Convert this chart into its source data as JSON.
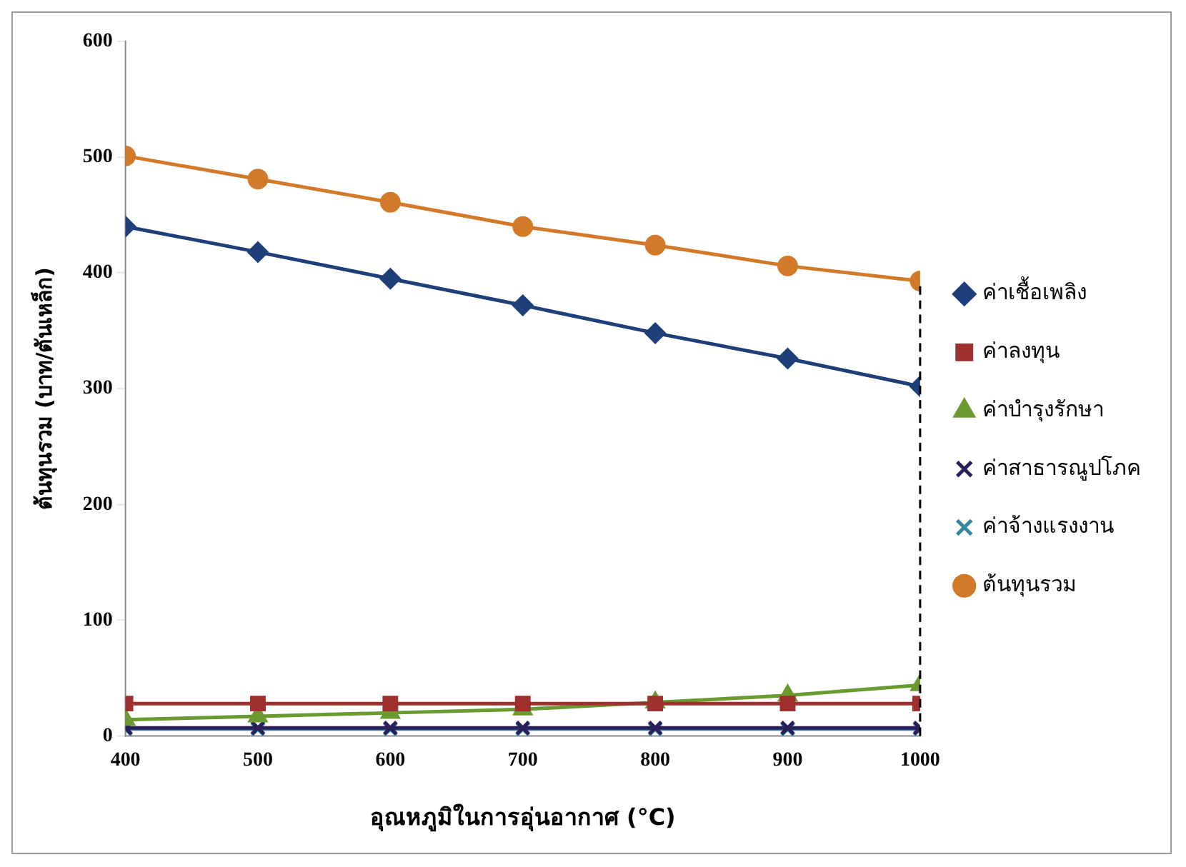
{
  "chart_data": {
    "type": "line",
    "xlabel": "อุณหภูมิในการอุ่นอากาศ (°C)",
    "ylabel": "ต้นทุนรวม (บาท/ตันเหล็ก)",
    "x": [
      400,
      500,
      600,
      700,
      800,
      900,
      1000
    ],
    "xlim": [
      400,
      1000
    ],
    "xticks": [
      400,
      500,
      600,
      700,
      800,
      900,
      1000
    ],
    "ylim": [
      0,
      600
    ],
    "yticks": [
      0,
      100,
      200,
      300,
      400,
      500,
      600
    ],
    "grid": false,
    "legend": "right",
    "line_style": "solid",
    "ref_lines": [
      {
        "axis": "x",
        "value": 1000,
        "line_style": "dashed",
        "color": "#000000"
      }
    ],
    "series": [
      {
        "name": "ค่าเชื้อเพลิง",
        "color": "#1f3f7a",
        "marker": "diamond",
        "values": [
          440,
          418,
          395,
          372,
          348,
          326,
          302
        ]
      },
      {
        "name": "ค่าลงทุน",
        "color": "#a03030",
        "marker": "square",
        "values": [
          28,
          28,
          28,
          28,
          28,
          28,
          28
        ]
      },
      {
        "name": "ค่าบำรุงรักษา",
        "color": "#6a9a30",
        "marker": "triangle",
        "values": [
          14,
          17,
          20,
          23,
          29,
          35,
          44
        ]
      },
      {
        "name": "ค่าสาธารณูปโภค",
        "color": "#2a1f5a",
        "marker": "cross",
        "values": [
          7,
          7,
          7,
          7,
          7,
          7,
          7
        ]
      },
      {
        "name": "ค่าจ้างแรงงาน",
        "color": "#2f8aa0",
        "marker": "cross",
        "values": [
          6,
          6,
          6,
          6,
          6,
          6,
          6
        ]
      },
      {
        "name": "ต้นทุนรวม",
        "color": "#d27a2a",
        "marker": "circle",
        "values": [
          501,
          481,
          461,
          440,
          424,
          406,
          393
        ]
      }
    ]
  }
}
